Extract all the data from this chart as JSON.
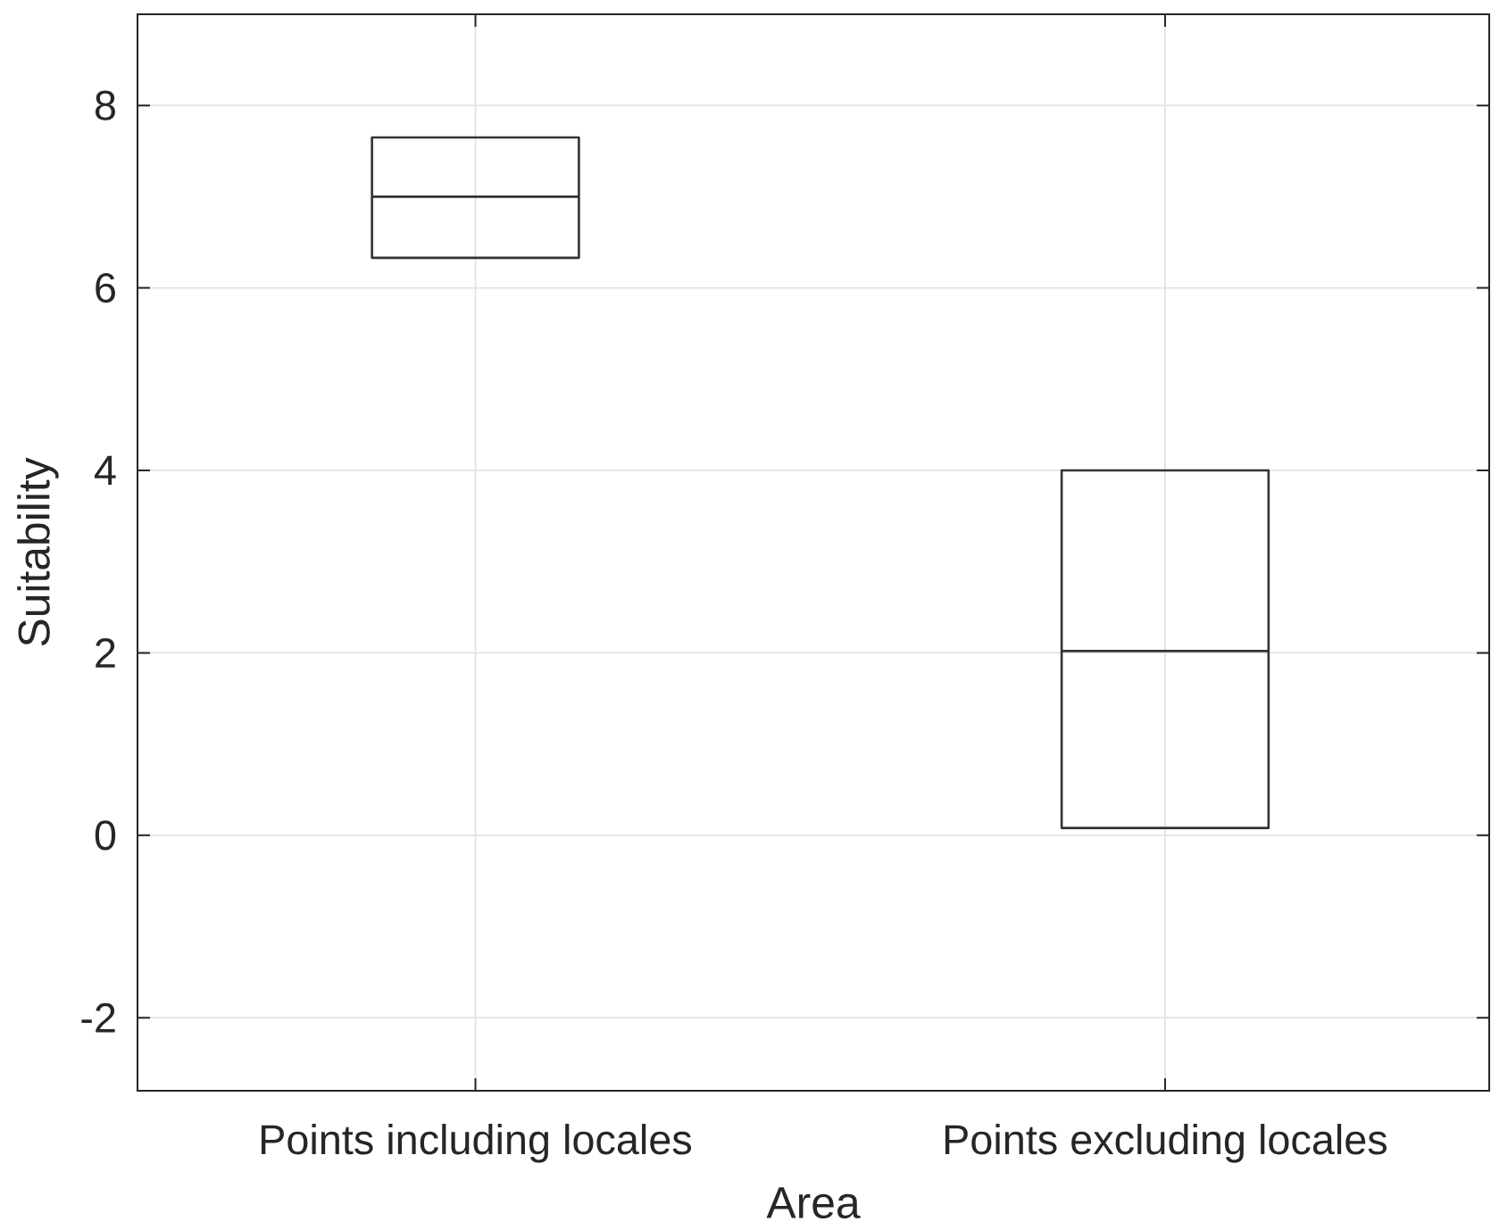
{
  "chart_data": {
    "type": "box",
    "xlabel": "Area",
    "ylabel": "Suitability",
    "categories": [
      "Points including locales",
      "Points excluding locales"
    ],
    "boxes": [
      {
        "low": 6.33,
        "q1": 6.33,
        "median": 7.0,
        "q3": 7.65,
        "high": 7.65
      },
      {
        "low": 0.08,
        "q1": 0.08,
        "median": 2.02,
        "q3": 4.0,
        "high": 4.0
      }
    ],
    "color": "#333333",
    "ylim": [
      -2.8,
      9
    ],
    "yticks": [
      -2,
      0,
      2,
      4,
      6,
      8
    ],
    "grid": true
  }
}
